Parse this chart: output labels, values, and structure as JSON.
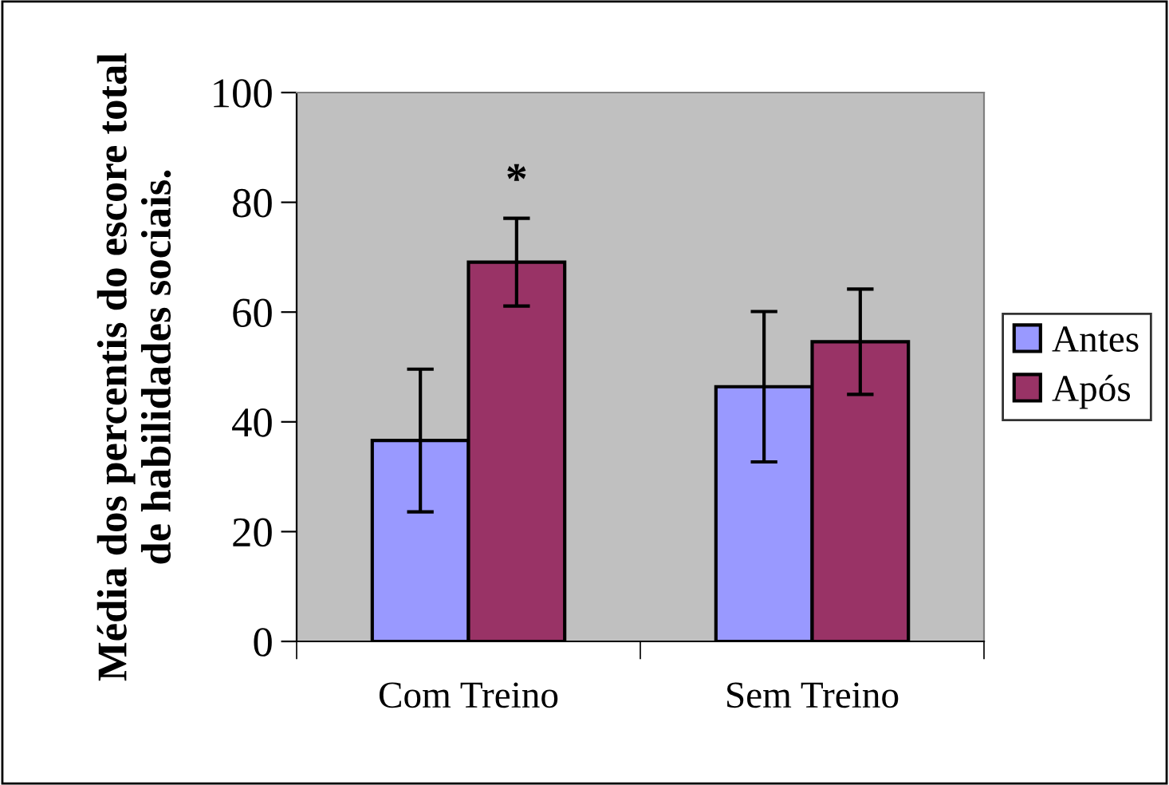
{
  "chart_data": {
    "type": "bar",
    "ylabel": "Média dos percentis do escore total\nde habilidades sociais.",
    "categories": [
      "Com Treino",
      "Sem Treino"
    ],
    "series": [
      {
        "name": "Antes",
        "color": "#9999ff",
        "values": [
          36.6,
          46.4
        ],
        "errors": [
          13,
          13.7
        ]
      },
      {
        "name": "Após",
        "color": "#993366",
        "values": [
          69.1,
          54.6
        ],
        "errors": [
          8,
          9.6
        ]
      }
    ],
    "ylim": [
      0,
      100
    ],
    "yticks": [
      0,
      20,
      40,
      60,
      80,
      100
    ],
    "grid": false,
    "legend": "right",
    "annotations": [
      "*"
    ]
  }
}
